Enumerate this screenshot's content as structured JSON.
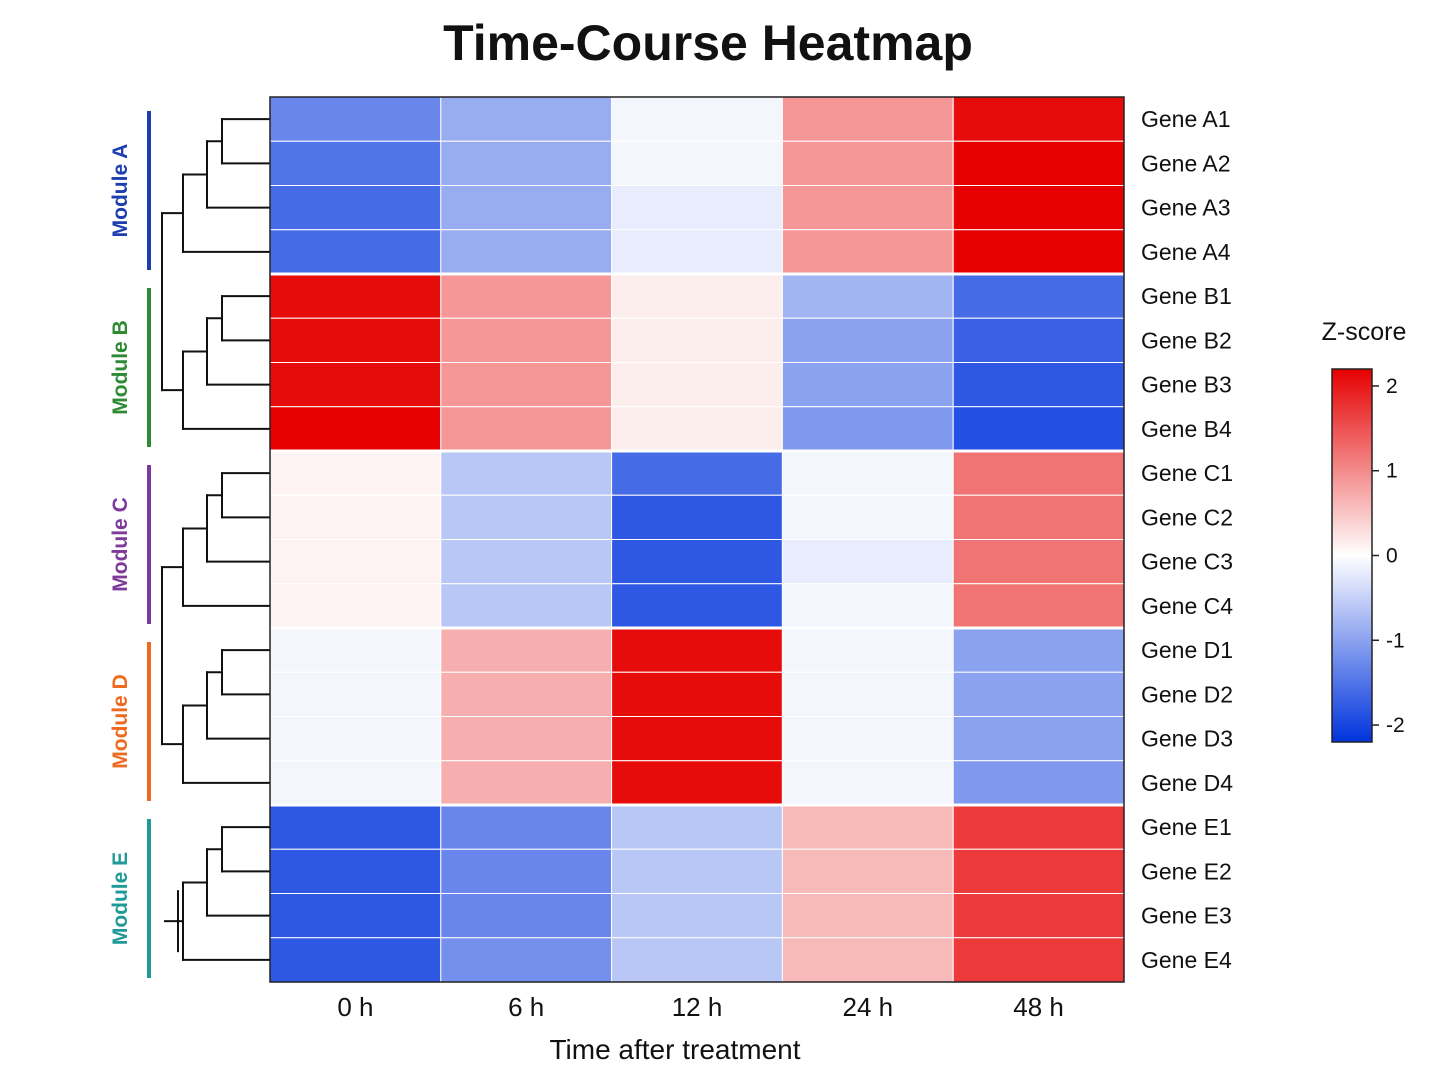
{
  "chart_data": {
    "type": "heatmap",
    "title": "Time-Course Heatmap",
    "xlabel": "Time after treatment",
    "columns": [
      "0 h",
      "6 h",
      "12 h",
      "24 h",
      "48 h"
    ],
    "rows": [
      "Gene A1",
      "Gene A2",
      "Gene A3",
      "Gene A4",
      "Gene B1",
      "Gene B2",
      "Gene B3",
      "Gene B4",
      "Gene C1",
      "Gene C2",
      "Gene C3",
      "Gene C4",
      "Gene D1",
      "Gene D2",
      "Gene D3",
      "Gene D4",
      "Gene E1",
      "Gene E2",
      "Gene E3",
      "Gene E4"
    ],
    "values": [
      [
        -1.3,
        -0.9,
        -0.1,
        0.9,
        2.1
      ],
      [
        -1.5,
        -0.9,
        -0.1,
        0.9,
        2.2
      ],
      [
        -1.6,
        -0.9,
        -0.2,
        0.9,
        2.3
      ],
      [
        -1.6,
        -0.9,
        -0.2,
        0.9,
        2.3
      ],
      [
        2.1,
        0.9,
        0.15,
        -0.8,
        -1.6
      ],
      [
        2.1,
        0.9,
        0.15,
        -1.0,
        -1.7
      ],
      [
        2.1,
        0.9,
        0.15,
        -1.0,
        -1.8
      ],
      [
        2.3,
        0.9,
        0.15,
        -1.1,
        -1.9
      ],
      [
        0.1,
        -0.6,
        -1.6,
        -0.1,
        1.2
      ],
      [
        0.1,
        -0.6,
        -1.8,
        -0.1,
        1.2
      ],
      [
        0.1,
        -0.6,
        -1.8,
        -0.2,
        1.2
      ],
      [
        0.1,
        -0.6,
        -1.8,
        -0.1,
        1.2
      ],
      [
        -0.1,
        0.7,
        2.1,
        -0.1,
        -1.0
      ],
      [
        -0.1,
        0.7,
        2.1,
        -0.1,
        -1.0
      ],
      [
        -0.1,
        0.7,
        2.1,
        -0.1,
        -1.0
      ],
      [
        -0.1,
        0.7,
        2.1,
        -0.1,
        -1.1
      ],
      [
        -1.8,
        -1.3,
        -0.6,
        0.6,
        1.7
      ],
      [
        -1.8,
        -1.3,
        -0.6,
        0.6,
        1.7
      ],
      [
        -1.8,
        -1.3,
        -0.6,
        0.6,
        1.7
      ],
      [
        -1.8,
        -1.2,
        -0.6,
        0.6,
        1.7
      ]
    ],
    "modules": [
      {
        "name": "Module A",
        "color": "#1c3fb0",
        "rows": [
          0,
          3
        ]
      },
      {
        "name": "Module B",
        "color": "#2e8b34",
        "rows": [
          4,
          7
        ]
      },
      {
        "name": "Module C",
        "color": "#7d3a9a",
        "rows": [
          8,
          11
        ]
      },
      {
        "name": "Module D",
        "color": "#ee6a1e",
        "rows": [
          12,
          15
        ]
      },
      {
        "name": "Module E",
        "color": "#1f9a98",
        "rows": [
          16,
          19
        ]
      }
    ],
    "colorbar": {
      "title": "Z-score",
      "min": -2.2,
      "max": 2.2,
      "ticks": [
        2,
        1,
        0,
        -1,
        -2
      ],
      "tick_labels": [
        "2",
        "1",
        "0",
        "-1",
        "-2"
      ],
      "low_color": "#0033dd",
      "mid_color": "#ffffff",
      "high_color": "#e60000"
    },
    "dendrogram": "row clustering, leaves ordered as rows",
    "grid": false,
    "legend_position": "right"
  }
}
